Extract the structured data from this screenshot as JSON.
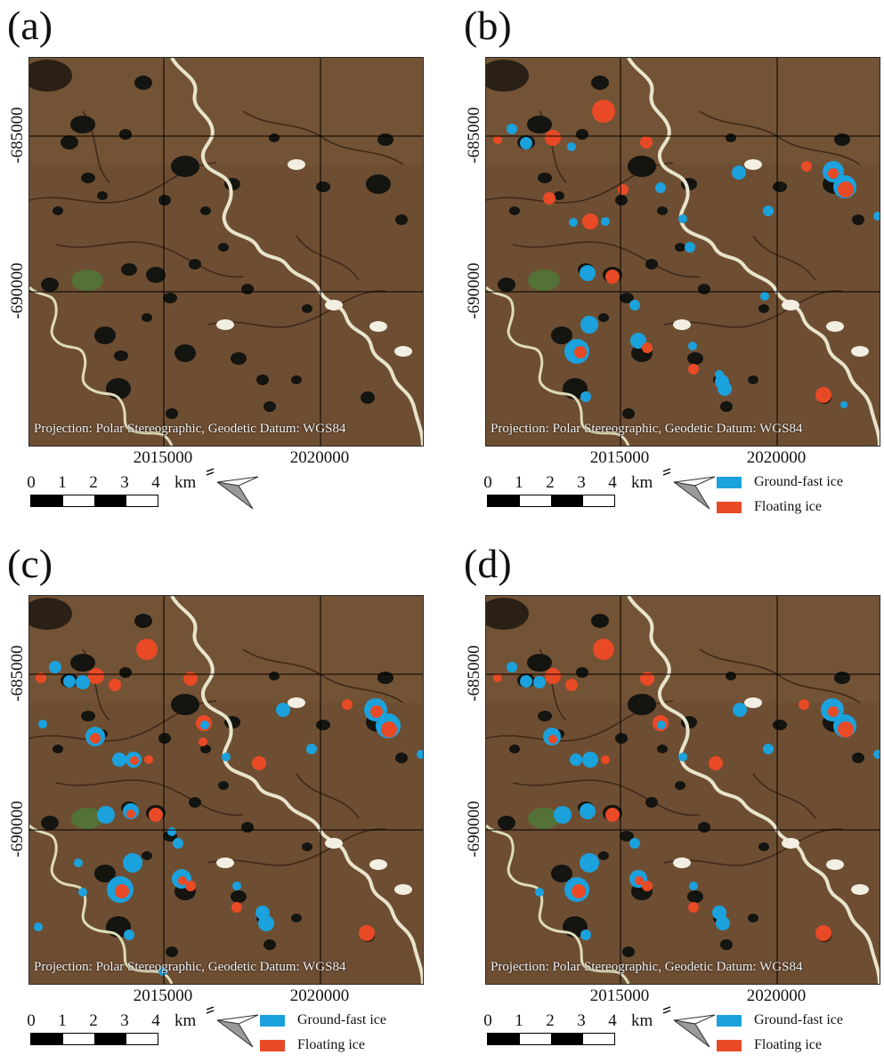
{
  "colors": {
    "ground_fast": "#1ba1dc",
    "floating": "#e84a25",
    "terrain": "#6e4e33"
  },
  "panels": [
    {
      "letter": "(a)",
      "has_legend": false
    },
    {
      "letter": "(b)",
      "has_legend": true
    },
    {
      "letter": "(c)",
      "has_legend": true
    },
    {
      "letter": "(d)",
      "has_legend": true
    }
  ],
  "axis": {
    "y_ticks": [
      "-685000",
      "-690000"
    ],
    "x_ticks": [
      "2015000",
      "2020000"
    ]
  },
  "projection_text": "Projection: Polar Stereographic, Geodetic Datum: WGS84",
  "scale": {
    "labels": [
      "0",
      "1",
      "2",
      "3",
      "4"
    ],
    "unit": "km"
  },
  "legend": {
    "ground_fast": "Ground-fast ice",
    "floating": "Floating ice"
  },
  "north_arrow_icon": "north-arrow-icon"
}
